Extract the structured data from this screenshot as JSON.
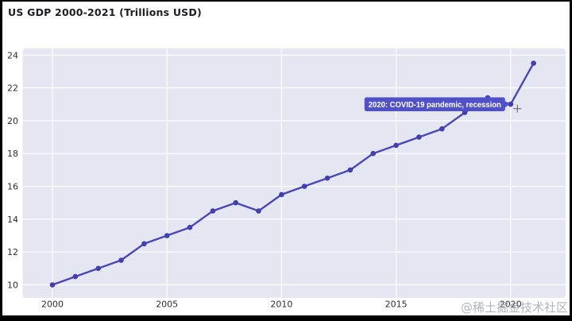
{
  "chart_data": {
    "type": "line",
    "title": "US GDP 2000-2021 (Trillions USD)",
    "x": [
      2000,
      2001,
      2002,
      2003,
      2004,
      2005,
      2006,
      2007,
      2008,
      2009,
      2010,
      2011,
      2012,
      2013,
      2014,
      2015,
      2016,
      2017,
      2018,
      2019,
      2020,
      2021
    ],
    "values": [
      10.0,
      10.5,
      11.0,
      11.5,
      12.5,
      13.0,
      13.5,
      14.5,
      15.0,
      14.5,
      15.5,
      16.0,
      16.5,
      17.0,
      18.0,
      18.5,
      19.0,
      19.5,
      20.5,
      21.4,
      21.0,
      23.5
    ],
    "xlabel": "",
    "ylabel": "",
    "xlim": [
      1998.7,
      2022.4
    ],
    "ylim": [
      9.2,
      24.4
    ],
    "x_ticks": [
      2000,
      2005,
      2010,
      2015,
      2020
    ],
    "y_ticks": [
      10,
      12,
      14,
      16,
      18,
      20,
      22,
      24
    ],
    "grid": true,
    "legend": "none",
    "annotation": {
      "text": "2020: COVID-19 pandemic, recession",
      "target_x": 2020,
      "target_y": 21.0
    },
    "colors": {
      "line": "#4a46b9",
      "marker": "#4340ae",
      "plot_bg": "#e4e7f1",
      "grid": "#fafbfd",
      "annotation_bg": "#5051c8",
      "annotation_text": "#ffffff",
      "tick_text": "#2d2d33",
      "title_text": "#1c1c24"
    }
  },
  "watermark": {
    "text": "@稀土掘金技术社区"
  },
  "cursor": {
    "shape": "crosshair-plus",
    "near_year": 2020
  }
}
